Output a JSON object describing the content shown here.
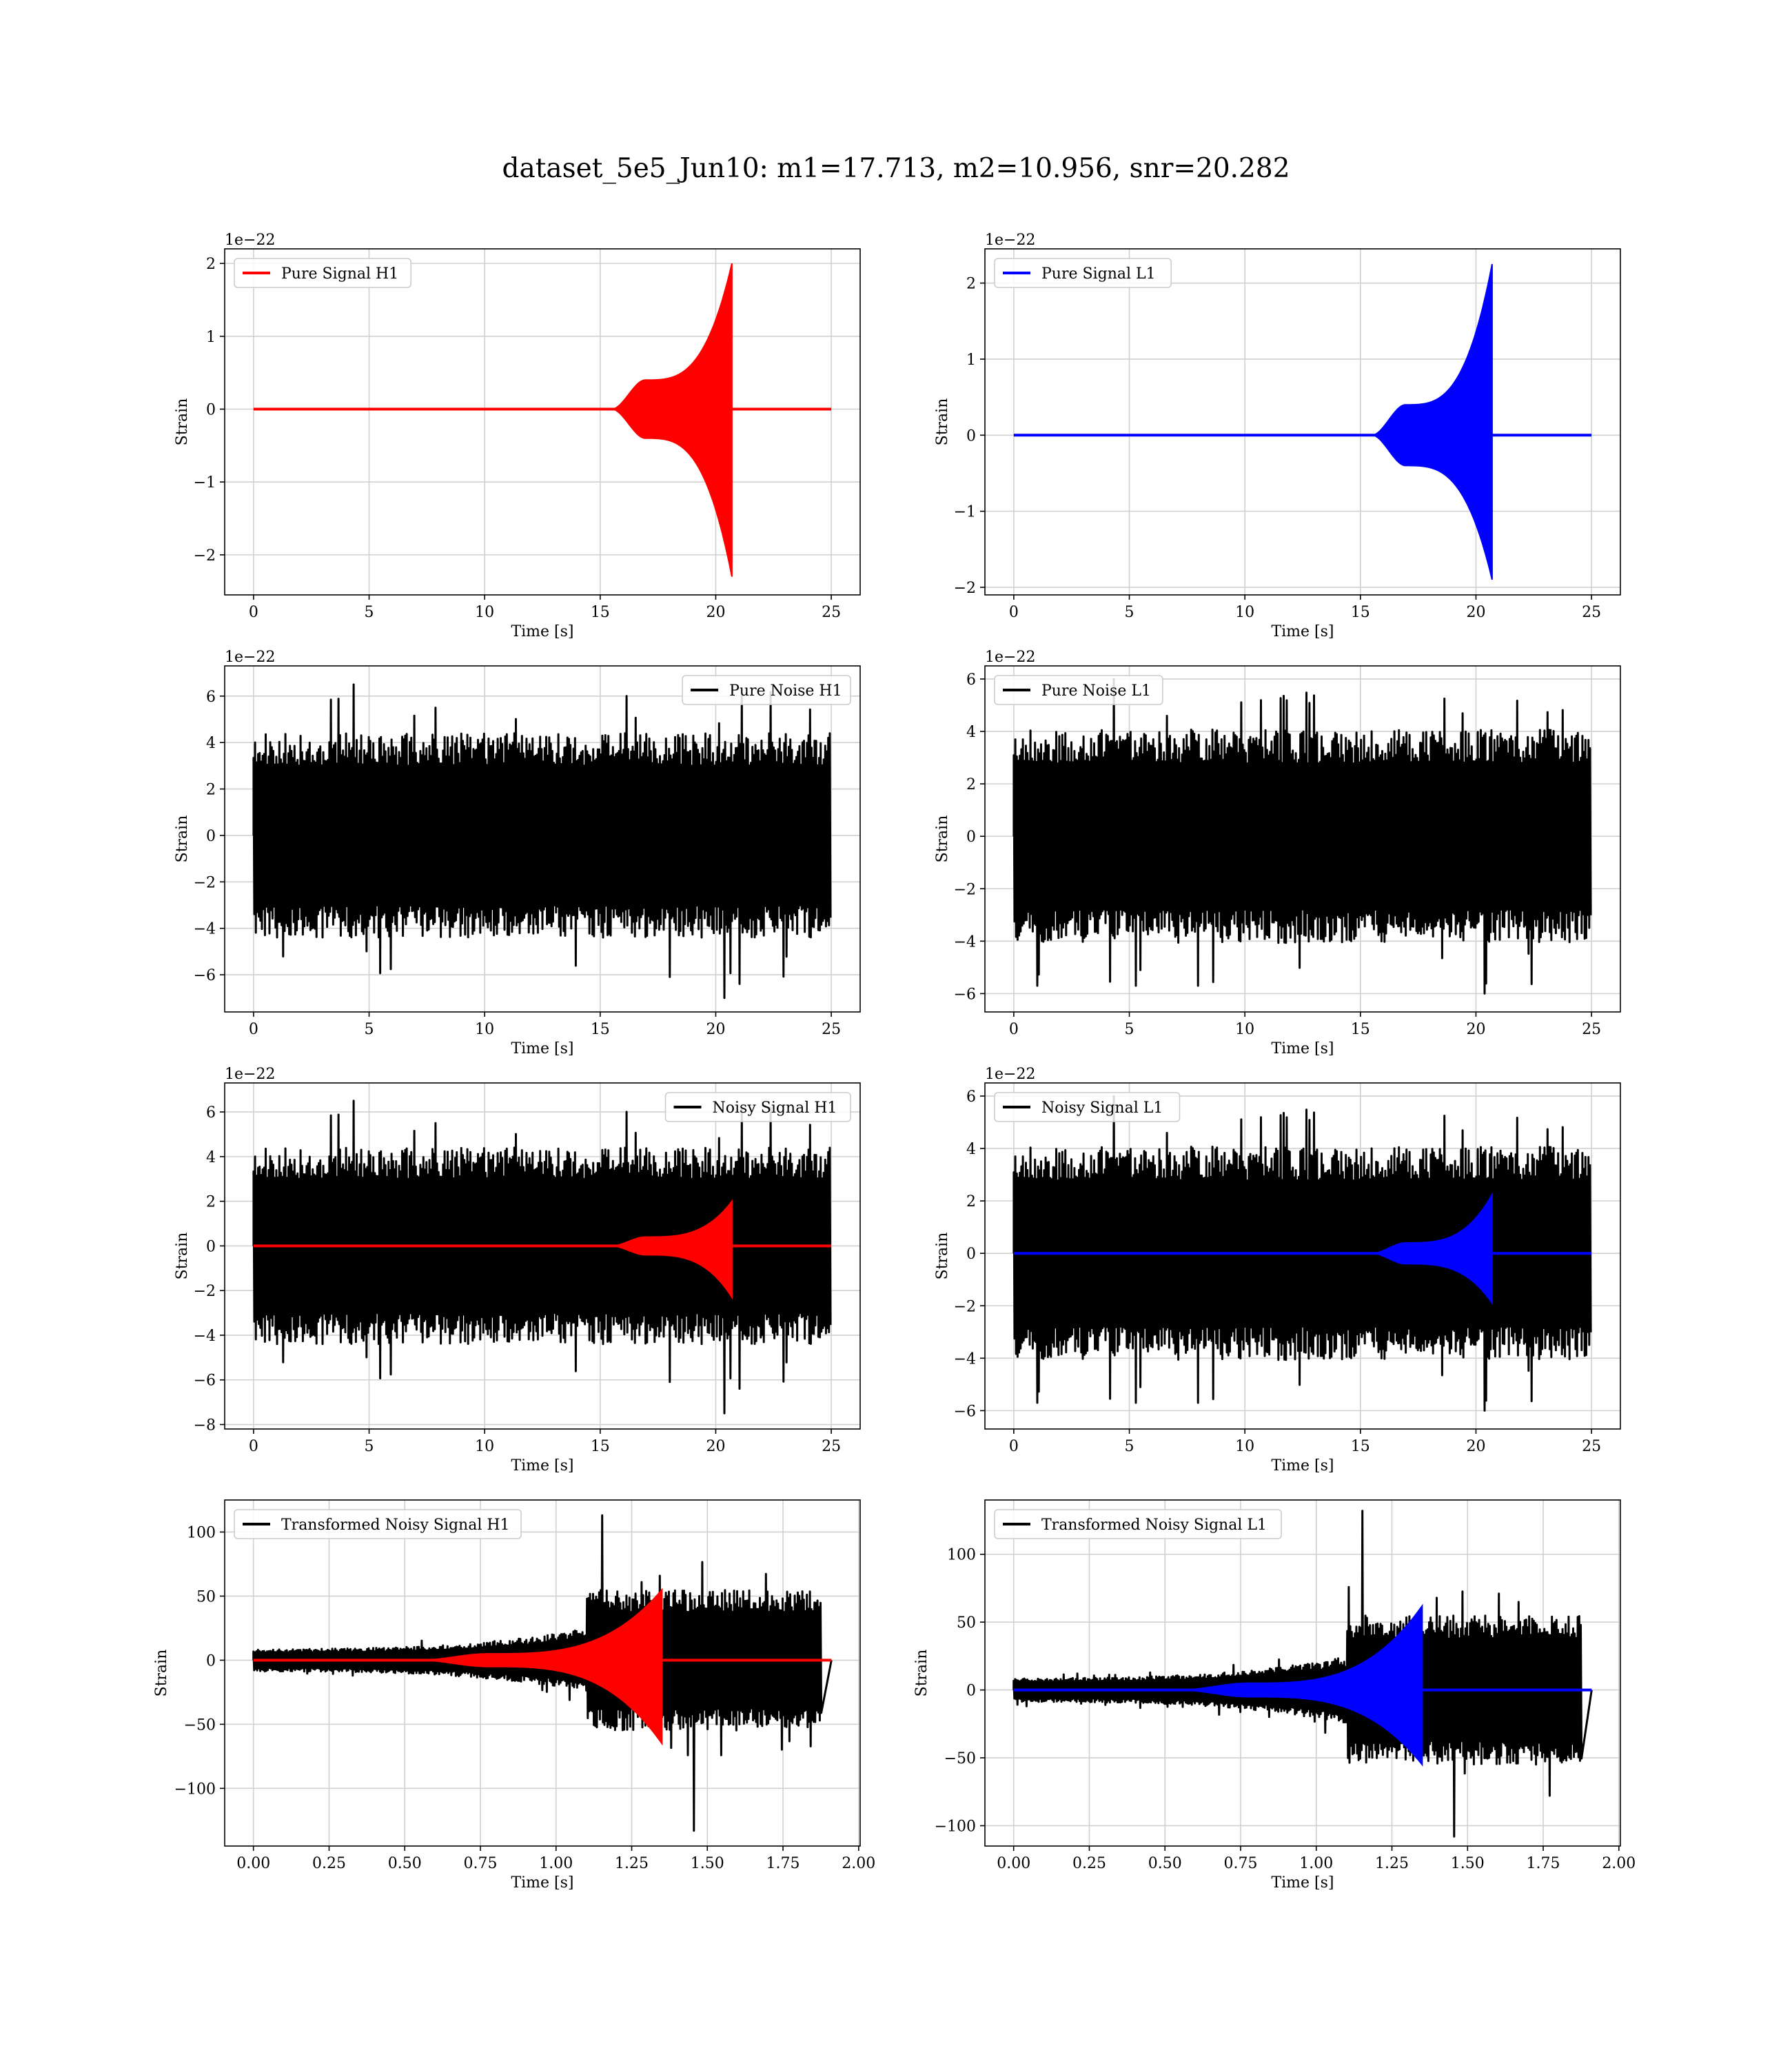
{
  "suptitle": "dataset_5e5_Jun10: m1=17.713, m2=10.956, snr=20.282",
  "chart_data": [
    {
      "id": "pure-signal-h1",
      "type": "line",
      "xlabel": "Time [s]",
      "ylabel": "Strain",
      "offset_text": "1e−22",
      "xlim": [
        -1.25,
        26.25
      ],
      "ylim": [
        -2.55,
        2.2
      ],
      "xticks": [
        0,
        5,
        10,
        15,
        20,
        25
      ],
      "xtick_labels": [
        "0",
        "5",
        "10",
        "15",
        "20",
        "25"
      ],
      "yticks": [
        -2,
        -1,
        0,
        1,
        2
      ],
      "ytick_labels": [
        "−2",
        "−1",
        "0",
        "1",
        "2"
      ],
      "grid": true,
      "legend": "upper left",
      "series": [
        {
          "name": "Pure Signal H1",
          "kind": "chirp",
          "color": "#ff0000",
          "t_start": 0,
          "t_end": 25,
          "t_onset": 15.5,
          "t_merger": 20.7,
          "plateau_amp": 0.4,
          "peak_max": 2.0,
          "peak_min": -2.3
        }
      ]
    },
    {
      "id": "pure-signal-l1",
      "type": "line",
      "xlabel": "Time [s]",
      "ylabel": "Strain",
      "offset_text": "1e−22",
      "xlim": [
        -1.25,
        26.25
      ],
      "ylim": [
        -2.1,
        2.45
      ],
      "xticks": [
        0,
        5,
        10,
        15,
        20,
        25
      ],
      "xtick_labels": [
        "0",
        "5",
        "10",
        "15",
        "20",
        "25"
      ],
      "yticks": [
        -2,
        -1,
        0,
        1,
        2
      ],
      "ytick_labels": [
        "−2",
        "−1",
        "0",
        "1",
        "2"
      ],
      "grid": true,
      "legend": "upper left",
      "series": [
        {
          "name": "Pure Signal L1",
          "kind": "chirp",
          "color": "#0000ff",
          "t_start": 0,
          "t_end": 25,
          "t_onset": 15.5,
          "t_merger": 20.7,
          "plateau_amp": 0.4,
          "peak_max": 2.25,
          "peak_min": -1.9
        }
      ]
    },
    {
      "id": "pure-noise-h1",
      "type": "line",
      "xlabel": "Time [s]",
      "ylabel": "Strain",
      "offset_text": "1e−22",
      "xlim": [
        -1.25,
        26.25
      ],
      "ylim": [
        -7.6,
        7.3
      ],
      "xticks": [
        0,
        5,
        10,
        15,
        20,
        25
      ],
      "xtick_labels": [
        "0",
        "5",
        "10",
        "15",
        "20",
        "25"
      ],
      "yticks": [
        -6,
        -4,
        -2,
        0,
        2,
        4,
        6
      ],
      "ytick_labels": [
        "−6",
        "−4",
        "−2",
        "0",
        "2",
        "4",
        "6"
      ],
      "grid": true,
      "legend": "upper right",
      "series": [
        {
          "name": "Pure Noise H1",
          "kind": "noise",
          "color": "#000000",
          "t_start": 0,
          "t_end": 25,
          "amp": 4.0,
          "spike_max": 6.5,
          "spike_min": -7.0,
          "seed": 11
        }
      ]
    },
    {
      "id": "pure-noise-l1",
      "type": "line",
      "xlabel": "Time [s]",
      "ylabel": "Strain",
      "offset_text": "1e−22",
      "xlim": [
        -1.25,
        26.25
      ],
      "ylim": [
        -6.7,
        6.5
      ],
      "xticks": [
        0,
        5,
        10,
        15,
        20,
        25
      ],
      "xtick_labels": [
        "0",
        "5",
        "10",
        "15",
        "20",
        "25"
      ],
      "yticks": [
        -6,
        -4,
        -2,
        0,
        2,
        4,
        6
      ],
      "ytick_labels": [
        "−6",
        "−4",
        "−2",
        "0",
        "2",
        "4",
        "6"
      ],
      "grid": true,
      "legend": "upper left",
      "series": [
        {
          "name": "Pure Noise L1",
          "kind": "noise",
          "color": "#000000",
          "t_start": 0,
          "t_end": 25,
          "amp": 3.7,
          "spike_max": 6.0,
          "spike_min": -6.0,
          "seed": 23
        }
      ]
    },
    {
      "id": "noisy-signal-h1",
      "type": "line",
      "xlabel": "Time [s]",
      "ylabel": "Strain",
      "offset_text": "1e−22",
      "xlim": [
        -1.25,
        26.25
      ],
      "ylim": [
        -8.2,
        7.3
      ],
      "xticks": [
        0,
        5,
        10,
        15,
        20,
        25
      ],
      "xtick_labels": [
        "0",
        "5",
        "10",
        "15",
        "20",
        "25"
      ],
      "yticks": [
        -8,
        -6,
        -4,
        -2,
        0,
        2,
        4,
        6
      ],
      "ytick_labels": [
        "−8",
        "−6",
        "−4",
        "−2",
        "0",
        "2",
        "4",
        "6"
      ],
      "grid": true,
      "legend": "upper right",
      "series": [
        {
          "name": "Noisy Signal H1",
          "kind": "noise",
          "color": "#000000",
          "t_start": 0,
          "t_end": 25,
          "amp": 4.0,
          "spike_max": 6.5,
          "spike_min": -7.5,
          "seed": 11
        },
        {
          "kind": "chirp",
          "color": "#ff0000",
          "t_start": 0,
          "t_end": 25,
          "t_onset": 15.5,
          "t_merger": 20.7,
          "plateau_amp": 0.4,
          "peak_max": 2.0,
          "peak_min": -2.3
        }
      ]
    },
    {
      "id": "noisy-signal-l1",
      "type": "line",
      "xlabel": "Time [s]",
      "ylabel": "Strain",
      "offset_text": "1e−22",
      "xlim": [
        -1.25,
        26.25
      ],
      "ylim": [
        -6.7,
        6.5
      ],
      "xticks": [
        0,
        5,
        10,
        15,
        20,
        25
      ],
      "xtick_labels": [
        "0",
        "5",
        "10",
        "15",
        "20",
        "25"
      ],
      "yticks": [
        -6,
        -4,
        -2,
        0,
        2,
        4,
        6
      ],
      "ytick_labels": [
        "−6",
        "−4",
        "−2",
        "0",
        "2",
        "4",
        "6"
      ],
      "grid": true,
      "legend": "upper left",
      "series": [
        {
          "name": "Noisy Signal L1",
          "kind": "noise",
          "color": "#000000",
          "t_start": 0,
          "t_end": 25,
          "amp": 3.7,
          "spike_max": 6.0,
          "spike_min": -6.0,
          "seed": 23
        },
        {
          "kind": "chirp",
          "color": "#0000ff",
          "t_start": 0,
          "t_end": 25,
          "t_onset": 15.5,
          "t_merger": 20.7,
          "plateau_amp": 0.4,
          "peak_max": 2.25,
          "peak_min": -1.9
        }
      ]
    },
    {
      "id": "transformed-noisy-signal-h1",
      "type": "line",
      "xlabel": "Time [s]",
      "ylabel": "Strain",
      "offset_text": "",
      "xlim": [
        -0.095,
        2.005
      ],
      "ylim": [
        -145,
        125
      ],
      "xticks": [
        0,
        0.25,
        0.5,
        0.75,
        1.0,
        1.25,
        1.5,
        1.75,
        2.0
      ],
      "xtick_labels": [
        "0.00",
        "0.25",
        "0.50",
        "0.75",
        "1.00",
        "1.25",
        "1.50",
        "1.75",
        "2.00"
      ],
      "yticks": [
        -100,
        -50,
        0,
        50,
        100
      ],
      "ytick_labels": [
        "−100",
        "−50",
        "0",
        "50",
        "100"
      ],
      "grid": true,
      "legend": "upper left",
      "series": [
        {
          "name": "Transformed Noisy Signal H1",
          "kind": "tnoise",
          "color": "#000000",
          "t_start": 0,
          "t_end": 1.91,
          "t_noise_end": 1.875,
          "t_rise": 1.1,
          "amp_early": 8,
          "amp_late": 50,
          "spike_max": 113,
          "spike_min": -133,
          "seed": 37
        },
        {
          "kind": "chirp",
          "color": "#ff0000",
          "t_start": 0,
          "t_end": 1.91,
          "t_onset": 0.55,
          "t_merger": 1.35,
          "plateau_amp": 5,
          "peak_max": 55,
          "peak_min": -65
        }
      ]
    },
    {
      "id": "transformed-noisy-signal-l1",
      "type": "line",
      "xlabel": "Time [s]",
      "ylabel": "Strain",
      "offset_text": "",
      "xlim": [
        -0.095,
        2.005
      ],
      "ylim": [
        -115,
        140
      ],
      "xticks": [
        0,
        0.25,
        0.5,
        0.75,
        1.0,
        1.25,
        1.5,
        1.75,
        2.0
      ],
      "xtick_labels": [
        "0.00",
        "0.25",
        "0.50",
        "0.75",
        "1.00",
        "1.25",
        "1.50",
        "1.75",
        "2.00"
      ],
      "yticks": [
        -100,
        -50,
        0,
        50,
        100
      ],
      "ytick_labels": [
        "−100",
        "−50",
        "0",
        "50",
        "100"
      ],
      "grid": true,
      "legend": "upper left",
      "series": [
        {
          "name": "Transformed Noisy Signal L1",
          "kind": "tnoise",
          "color": "#000000",
          "t_start": 0,
          "t_end": 1.91,
          "t_noise_end": 1.875,
          "t_rise": 1.1,
          "amp_early": 8,
          "amp_late": 50,
          "spike_max": 132,
          "spike_min": -108,
          "seed": 53
        },
        {
          "kind": "chirp",
          "color": "#0000ff",
          "t_start": 0,
          "t_end": 1.91,
          "t_onset": 0.55,
          "t_merger": 1.35,
          "plateau_amp": 5,
          "peak_max": 62,
          "peak_min": -55
        }
      ]
    }
  ]
}
